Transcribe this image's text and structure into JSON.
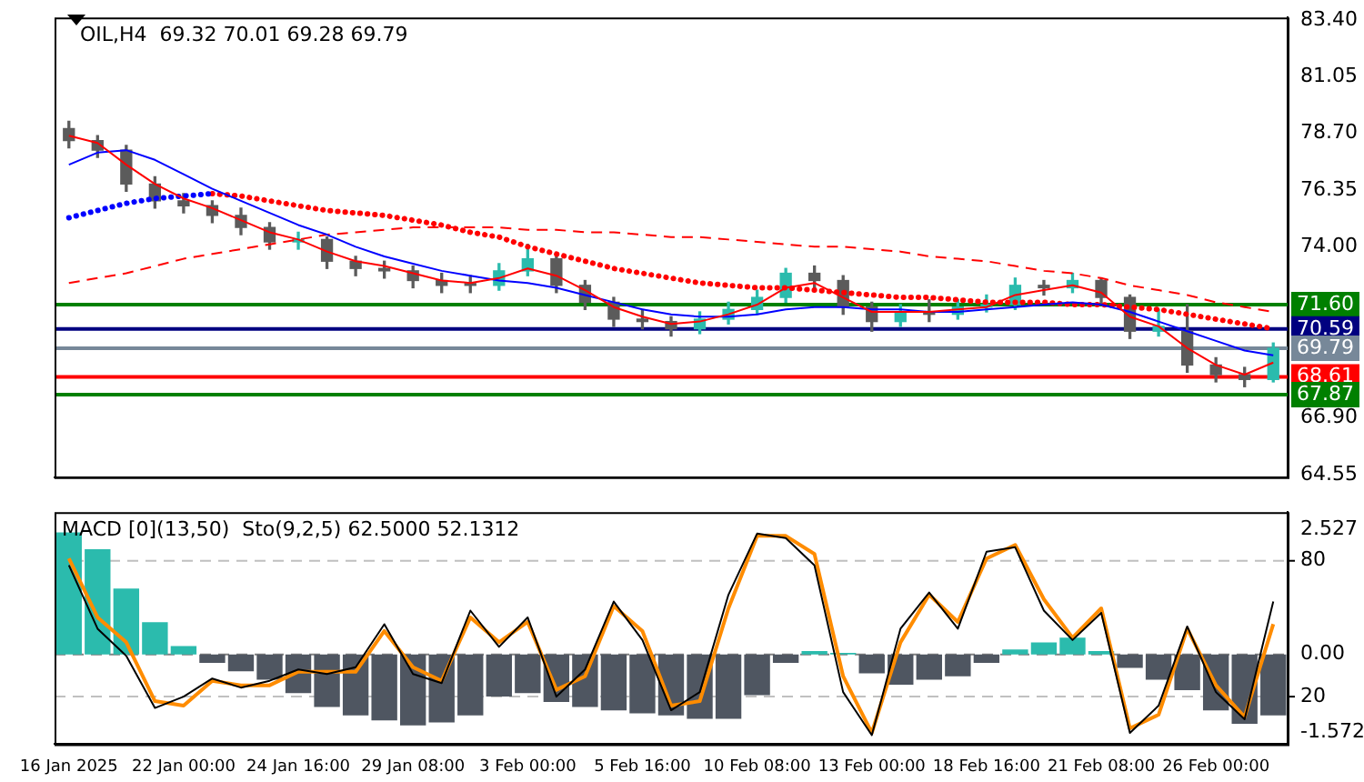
{
  "chart_data": [
    {
      "type": "candlestick",
      "title": "OIL,H4  69.32 70.01 69.28 69.79",
      "categories": [
        null,
        null,
        null,
        null,
        null,
        null,
        null,
        null,
        null,
        null,
        null,
        null,
        null,
        null,
        null,
        null,
        null,
        null,
        null,
        null,
        null,
        null,
        null,
        null,
        null,
        null,
        null,
        null,
        null,
        null,
        null,
        null,
        null,
        null,
        null,
        null,
        null,
        null,
        null,
        null,
        null,
        null,
        null
      ],
      "ohlc": [
        [
          78.9,
          79.2,
          78.1,
          78.4
        ],
        [
          78.4,
          78.6,
          77.7,
          78.0
        ],
        [
          78.0,
          78.2,
          76.3,
          76.6
        ],
        [
          76.6,
          76.9,
          75.6,
          75.9
        ],
        [
          75.9,
          76.2,
          75.4,
          75.7
        ],
        [
          75.7,
          75.9,
          75.0,
          75.3
        ],
        [
          75.3,
          75.6,
          74.5,
          74.8
        ],
        [
          74.8,
          75.0,
          73.9,
          74.2
        ],
        [
          74.2,
          74.6,
          73.9,
          74.3
        ],
        [
          74.3,
          74.4,
          73.1,
          73.4
        ],
        [
          73.4,
          73.6,
          72.8,
          73.1
        ],
        [
          73.1,
          73.4,
          72.7,
          73.0
        ],
        [
          73.0,
          73.2,
          72.3,
          72.6
        ],
        [
          72.6,
          72.9,
          72.1,
          72.4
        ],
        [
          72.4,
          72.8,
          72.1,
          72.4
        ],
        [
          72.4,
          73.3,
          72.2,
          73.0
        ],
        [
          73.0,
          74.1,
          72.8,
          73.5
        ],
        [
          73.5,
          73.7,
          72.1,
          72.4
        ],
        [
          72.4,
          72.6,
          71.4,
          71.7
        ],
        [
          71.7,
          71.9,
          70.7,
          71.0
        ],
        [
          71.0,
          71.4,
          70.6,
          70.9
        ],
        [
          70.9,
          71.1,
          70.3,
          70.6
        ],
        [
          70.6,
          71.3,
          70.4,
          71.0
        ],
        [
          71.0,
          71.7,
          70.8,
          71.4
        ],
        [
          71.4,
          72.2,
          71.2,
          71.9
        ],
        [
          71.9,
          73.1,
          71.7,
          72.9
        ],
        [
          72.9,
          73.2,
          72.3,
          72.6
        ],
        [
          72.6,
          72.8,
          71.2,
          71.5
        ],
        [
          71.5,
          71.7,
          70.5,
          70.9
        ],
        [
          70.9,
          71.6,
          70.7,
          71.3
        ],
        [
          71.3,
          71.8,
          70.9,
          71.2
        ],
        [
          71.2,
          71.8,
          71.0,
          71.5
        ],
        [
          71.5,
          72.0,
          71.3,
          71.6
        ],
        [
          71.6,
          72.7,
          71.4,
          72.4
        ],
        [
          72.4,
          72.6,
          72.0,
          72.3
        ],
        [
          72.3,
          72.9,
          72.1,
          72.6
        ],
        [
          72.6,
          72.7,
          71.6,
          71.9
        ],
        [
          71.9,
          72.0,
          70.2,
          70.5
        ],
        [
          70.5,
          71.4,
          70.3,
          70.7
        ],
        [
          70.5,
          71.6,
          68.8,
          69.1
        ],
        [
          69.1,
          69.4,
          68.4,
          68.7
        ],
        [
          68.7,
          69.0,
          68.2,
          68.5
        ],
        [
          68.5,
          70.01,
          68.4,
          69.79
        ]
      ],
      "colors": [
        "#5b5b5b",
        "#5b5b5b",
        "#5b5b5b",
        "#5b5b5b",
        "#5b5b5b",
        "#5b5b5b",
        "#5b5b5b",
        "#5b5b5b",
        "#2bbbad",
        "#5b5b5b",
        "#5b5b5b",
        "#5b5b5b",
        "#5b5b5b",
        "#5b5b5b",
        "#5b5b5b",
        "#2bbbad",
        "#2bbbad",
        "#5b5b5b",
        "#5b5b5b",
        "#5b5b5b",
        "#5b5b5b",
        "#5b5b5b",
        "#2bbbad",
        "#2bbbad",
        "#2bbbad",
        "#2bbbad",
        "#5b5b5b",
        "#5b5b5b",
        "#5b5b5b",
        "#2bbbad",
        "#5b5b5b",
        "#2bbbad",
        "#2bbbad",
        "#2bbbad",
        "#5b5b5b",
        "#2bbbad",
        "#5b5b5b",
        "#5b5b5b",
        "#2bbbad",
        "#5b5b5b",
        "#5b5b5b",
        "#5b5b5b",
        "#2bbbad"
      ],
      "series": [
        {
          "type": "line",
          "color": "#ff0000",
          "line_style": "solid",
          "values": [
            78.6,
            78.3,
            77.4,
            76.6,
            76.0,
            75.6,
            75.1,
            74.6,
            74.3,
            73.8,
            73.4,
            73.2,
            72.9,
            72.6,
            72.5,
            72.7,
            73.1,
            72.8,
            72.2,
            71.5,
            71.1,
            70.8,
            70.9,
            71.2,
            71.6,
            72.3,
            72.5,
            71.9,
            71.3,
            71.3,
            71.3,
            71.4,
            71.5,
            72.0,
            72.2,
            72.4,
            72.1,
            71.1,
            70.7,
            69.8,
            69.1,
            68.7,
            69.2
          ]
        },
        {
          "type": "line",
          "color": "#0000ff",
          "line_style": "solid",
          "values": [
            77.4,
            77.9,
            78.0,
            77.6,
            77.0,
            76.4,
            75.9,
            75.4,
            74.9,
            74.5,
            74.0,
            73.6,
            73.3,
            73.0,
            72.8,
            72.6,
            72.5,
            72.3,
            72.0,
            71.7,
            71.4,
            71.2,
            71.1,
            71.1,
            71.2,
            71.4,
            71.5,
            71.5,
            71.4,
            71.4,
            71.3,
            71.3,
            71.4,
            71.5,
            71.6,
            71.7,
            71.6,
            71.3,
            70.9,
            70.5,
            70.1,
            69.7,
            69.5
          ]
        },
        {
          "type": "line",
          "color": "#0000ff",
          "line_style": "dotted",
          "values": [
            75.2,
            75.5,
            75.8,
            76.0,
            76.1,
            76.2,
            null,
            null,
            null,
            null,
            null,
            null,
            null,
            null,
            null,
            null,
            null,
            null,
            null,
            null,
            null,
            null,
            null,
            null,
            null,
            null,
            null,
            null,
            null,
            null,
            null,
            null,
            null,
            null,
            null,
            null,
            null,
            null,
            null,
            null,
            null,
            null,
            null
          ]
        },
        {
          "type": "line",
          "color": "#ff0000",
          "line_style": "dotted",
          "values": [
            null,
            null,
            null,
            null,
            null,
            76.2,
            76.1,
            75.9,
            75.7,
            75.5,
            75.4,
            75.3,
            75.1,
            74.9,
            74.6,
            74.4,
            74.0,
            73.7,
            73.4,
            73.1,
            72.9,
            72.7,
            72.5,
            72.4,
            72.3,
            72.3,
            72.2,
            72.1,
            72.0,
            71.9,
            71.9,
            71.8,
            71.7,
            71.7,
            71.7,
            71.6,
            71.6,
            71.5,
            71.4,
            71.2,
            71.0,
            70.8,
            70.6
          ]
        },
        {
          "type": "line",
          "color": "#ff0000",
          "line_style": "dashed",
          "values": [
            72.5,
            72.7,
            72.9,
            73.2,
            73.5,
            73.7,
            73.9,
            74.1,
            74.3,
            74.5,
            74.6,
            74.7,
            74.8,
            74.8,
            74.8,
            74.8,
            74.7,
            74.7,
            74.6,
            74.6,
            74.5,
            74.4,
            74.4,
            74.3,
            74.2,
            74.1,
            74.0,
            74.0,
            73.9,
            73.8,
            73.6,
            73.5,
            73.4,
            73.2,
            73.0,
            72.9,
            72.7,
            72.4,
            72.2,
            72.0,
            71.7,
            71.5,
            71.3
          ]
        }
      ],
      "ref_lines": [
        {
          "axis": "y",
          "value": 71.6,
          "label": "71.60",
          "color": "#008000"
        },
        {
          "axis": "y",
          "value": 70.59,
          "label": "70.59",
          "color": "#000080"
        },
        {
          "axis": "y",
          "value": 69.79,
          "label": "69.79",
          "color": "#778899"
        },
        {
          "axis": "y",
          "value": 68.61,
          "label": "68.61",
          "color": "#ff0000"
        },
        {
          "axis": "y",
          "value": 67.87,
          "label": "67.87",
          "color": "#008000"
        }
      ],
      "ylim": [
        64.45,
        83.5
      ],
      "yticks": [
        {
          "value": 83.4,
          "label": "83.40"
        },
        {
          "value": 81.05,
          "label": "81.05"
        },
        {
          "value": 78.7,
          "label": "78.70"
        },
        {
          "value": 76.35,
          "label": "76.35"
        },
        {
          "value": 74.0,
          "label": "74.00"
        },
        {
          "value": 66.9,
          "label": "66.90"
        },
        {
          "value": 64.55,
          "label": "64.55"
        }
      ],
      "tick_labels": "y",
      "grid": false,
      "legend": false
    },
    {
      "type": "bar",
      "title": "MACD [0](13,50)  Sto(9,2,5) 62.5000 52.1312",
      "categories": [
        "16 Jan 2025",
        null,
        null,
        null,
        "22 Jan 00:00",
        null,
        null,
        null,
        "24 Jan 16:00",
        null,
        null,
        null,
        "29 Jan 08:00",
        null,
        null,
        null,
        "3 Feb 00:00",
        null,
        null,
        null,
        "5 Feb 16:00",
        null,
        null,
        null,
        "10 Feb 08:00",
        null,
        null,
        null,
        "13 Feb 00:00",
        null,
        null,
        null,
        "18 Feb 16:00",
        null,
        null,
        null,
        "21 Feb 08:00",
        null,
        null,
        null,
        "26 Feb 00:00",
        null,
        null
      ],
      "series": [
        {
          "type": "bar",
          "axis": "y2",
          "values": [
            2.46,
            2.12,
            1.33,
            0.65,
            0.17,
            -0.17,
            -0.34,
            -0.51,
            -0.78,
            -1.06,
            -1.23,
            -1.33,
            -1.43,
            -1.37,
            -1.23,
            -0.85,
            -0.78,
            -0.96,
            -1.06,
            -1.13,
            -1.19,
            -1.23,
            -1.3,
            -1.3,
            -0.82,
            -0.17,
            0.07,
            0.03,
            -0.38,
            -0.61,
            -0.51,
            -0.44,
            -0.17,
            0.1,
            0.24,
            0.34,
            0.07,
            -0.27,
            -0.51,
            -0.72,
            -1.13,
            -1.4,
            -1.23
          ],
          "colors": [
            "#2bbbad",
            "#2bbbad",
            "#2bbbad",
            "#2bbbad",
            "#2bbbad",
            "#4f5661",
            "#4f5661",
            "#4f5661",
            "#4f5661",
            "#4f5661",
            "#4f5661",
            "#4f5661",
            "#4f5661",
            "#4f5661",
            "#4f5661",
            "#4f5661",
            "#4f5661",
            "#4f5661",
            "#4f5661",
            "#4f5661",
            "#4f5661",
            "#4f5661",
            "#4f5661",
            "#4f5661",
            "#4f5661",
            "#4f5661",
            "#2bbbad",
            "#2bbbad",
            "#4f5661",
            "#4f5661",
            "#4f5661",
            "#4f5661",
            "#4f5661",
            "#2bbbad",
            "#2bbbad",
            "#2bbbad",
            "#2bbbad",
            "#4f5661",
            "#4f5661",
            "#4f5661",
            "#4f5661",
            "#4f5661",
            "#4f5661"
          ]
        },
        {
          "type": "line",
          "axis": "y",
          "color": "#000000",
          "values": [
            78,
            50,
            38,
            15,
            20,
            28,
            24,
            27,
            32,
            30,
            33,
            52,
            30,
            26,
            58,
            42,
            55,
            20,
            32,
            62,
            45,
            14,
            22,
            65,
            92,
            90,
            78,
            22,
            3,
            50,
            66,
            50,
            84,
            86,
            58,
            45,
            57,
            4,
            16,
            51,
            22,
            10,
            62
          ]
        },
        {
          "type": "line",
          "axis": "y",
          "color": "#ff8c00",
          "values": [
            81,
            55,
            44,
            18,
            16,
            27,
            25,
            25,
            31,
            31,
            31,
            49,
            33,
            27,
            55,
            44,
            53,
            23,
            29,
            60,
            49,
            16,
            18,
            59,
            91,
            91,
            83,
            29,
            4,
            44,
            65,
            53,
            81,
            87,
            63,
            46,
            59,
            6,
            12,
            50,
            25,
            11,
            52
          ]
        }
      ],
      "ref_lines": [
        {
          "axis": "y",
          "value": 80,
          "color": "#c0c0c0",
          "line_style": "dashed"
        },
        {
          "axis": "y",
          "value": 20,
          "color": "#c0c0c0",
          "line_style": "dashed"
        },
        {
          "axis": "y2",
          "value": 0,
          "color": "#808080",
          "line_style": "dashed"
        }
      ],
      "ylim": [
        -1,
        101.5
      ],
      "yticks": [
        20,
        80
      ],
      "y2lim": [
        -1.81,
        2.87
      ],
      "y2ticks": [
        {
          "value": 2.527,
          "label": "2.527"
        },
        {
          "value": 0,
          "label": "0.00"
        },
        {
          "value": -1.572,
          "label": "-1.572"
        }
      ],
      "grid": false,
      "legend": false
    }
  ]
}
